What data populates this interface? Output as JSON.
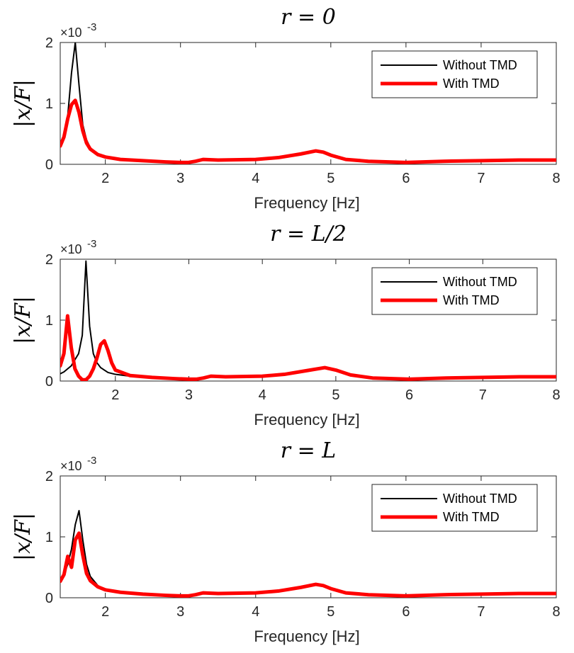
{
  "chart_data": [
    {
      "type": "line",
      "title": "r = 0",
      "xlabel": "Frequency [Hz]",
      "ylabel": "|x/F|",
      "y_exponent_label": "×10",
      "y_exponent_power": "-3",
      "xlim": [
        1.4,
        8
      ],
      "ylim": [
        0,
        2
      ],
      "xticks": [
        2,
        3,
        4,
        5,
        6,
        7,
        8
      ],
      "yticks": [
        0,
        1,
        2
      ],
      "legend_position": "top-right",
      "series": [
        {
          "name": "Without TMD",
          "color": "#000000",
          "x": [
            1.4,
            1.45,
            1.5,
            1.55,
            1.6,
            1.65,
            1.7,
            1.75,
            1.8,
            1.9,
            2.0,
            2.2,
            2.5,
            2.8,
            3.0,
            3.1,
            3.2,
            3.3,
            3.5,
            4.0,
            4.3,
            4.6,
            4.8,
            4.9,
            5.0,
            5.2,
            5.5,
            6.0,
            6.5,
            7.0,
            7.5,
            8.0
          ],
          "values": [
            0.3,
            0.45,
            0.8,
            1.5,
            2.0,
            1.3,
            0.65,
            0.4,
            0.27,
            0.17,
            0.12,
            0.08,
            0.06,
            0.04,
            0.03,
            0.03,
            0.05,
            0.08,
            0.07,
            0.08,
            0.11,
            0.17,
            0.22,
            0.2,
            0.15,
            0.08,
            0.05,
            0.03,
            0.05,
            0.06,
            0.07,
            0.07
          ]
        },
        {
          "name": "With TMD",
          "color": "#ff0000",
          "x": [
            1.4,
            1.45,
            1.5,
            1.55,
            1.6,
            1.65,
            1.7,
            1.75,
            1.8,
            1.9,
            2.0,
            2.2,
            2.5,
            2.8,
            3.0,
            3.1,
            3.2,
            3.3,
            3.5,
            4.0,
            4.3,
            4.6,
            4.8,
            4.9,
            5.0,
            5.2,
            5.5,
            6.0,
            6.5,
            7.0,
            7.5,
            8.0
          ],
          "values": [
            0.3,
            0.45,
            0.75,
            0.98,
            1.05,
            0.85,
            0.55,
            0.35,
            0.25,
            0.16,
            0.12,
            0.08,
            0.06,
            0.04,
            0.03,
            0.03,
            0.05,
            0.08,
            0.07,
            0.08,
            0.11,
            0.17,
            0.22,
            0.2,
            0.15,
            0.08,
            0.05,
            0.03,
            0.05,
            0.06,
            0.07,
            0.07
          ]
        }
      ]
    },
    {
      "type": "line",
      "title": "r = L/2",
      "xlabel": "Frequency [Hz]",
      "ylabel": "|x/F|",
      "y_exponent_label": "×10",
      "y_exponent_power": "-3",
      "xlim": [
        1.25,
        8
      ],
      "ylim": [
        0,
        2
      ],
      "xticks": [
        2,
        3,
        4,
        5,
        6,
        7,
        8
      ],
      "yticks": [
        0,
        1,
        2
      ],
      "legend_position": "top-right",
      "series": [
        {
          "name": "Without TMD",
          "color": "#000000",
          "x": [
            1.25,
            1.3,
            1.4,
            1.45,
            1.5,
            1.55,
            1.6,
            1.65,
            1.7,
            1.75,
            1.8,
            1.9,
            2.0,
            2.2,
            2.5,
            2.8,
            3.0,
            3.1,
            3.2,
            3.3,
            3.5,
            4.0,
            4.3,
            4.6,
            4.85,
            5.0,
            5.2,
            5.5,
            6.0,
            6.5,
            7.0,
            7.5,
            8.0
          ],
          "values": [
            0.12,
            0.15,
            0.25,
            0.35,
            0.45,
            0.75,
            1.97,
            0.9,
            0.45,
            0.3,
            0.22,
            0.14,
            0.11,
            0.08,
            0.06,
            0.04,
            0.03,
            0.03,
            0.05,
            0.08,
            0.07,
            0.08,
            0.11,
            0.17,
            0.22,
            0.18,
            0.1,
            0.05,
            0.03,
            0.05,
            0.06,
            0.07,
            0.07
          ]
        },
        {
          "name": "With TMD",
          "color": "#ff0000",
          "x": [
            1.25,
            1.3,
            1.35,
            1.4,
            1.45,
            1.5,
            1.55,
            1.6,
            1.65,
            1.7,
            1.75,
            1.8,
            1.85,
            1.9,
            1.95,
            2.0,
            2.2,
            2.5,
            2.8,
            3.0,
            3.1,
            3.2,
            3.3,
            3.5,
            4.0,
            4.3,
            4.6,
            4.85,
            5.0,
            5.2,
            5.5,
            6.0,
            6.5,
            7.0,
            7.5,
            8.0
          ],
          "values": [
            0.25,
            0.45,
            1.07,
            0.55,
            0.2,
            0.08,
            0.02,
            0.02,
            0.08,
            0.2,
            0.38,
            0.6,
            0.66,
            0.5,
            0.3,
            0.18,
            0.09,
            0.06,
            0.04,
            0.03,
            0.03,
            0.05,
            0.08,
            0.07,
            0.08,
            0.11,
            0.17,
            0.22,
            0.18,
            0.1,
            0.05,
            0.03,
            0.05,
            0.06,
            0.07,
            0.07
          ]
        }
      ]
    },
    {
      "type": "line",
      "title": "r = L",
      "xlabel": "Frequency [Hz]",
      "ylabel": "|x/F|",
      "y_exponent_label": "×10",
      "y_exponent_power": "-3",
      "xlim": [
        1.4,
        8
      ],
      "ylim": [
        0,
        2
      ],
      "xticks": [
        2,
        3,
        4,
        5,
        6,
        7,
        8
      ],
      "yticks": [
        0,
        1,
        2
      ],
      "legend_position": "top-right",
      "series": [
        {
          "name": "Without TMD",
          "color": "#000000",
          "x": [
            1.4,
            1.45,
            1.5,
            1.55,
            1.6,
            1.65,
            1.7,
            1.75,
            1.8,
            1.9,
            2.0,
            2.2,
            2.5,
            2.8,
            3.0,
            3.1,
            3.2,
            3.3,
            3.5,
            4.0,
            4.3,
            4.6,
            4.8,
            4.9,
            5.0,
            5.2,
            5.5,
            6.0,
            6.5,
            7.0,
            7.5,
            8.0
          ],
          "values": [
            0.27,
            0.38,
            0.55,
            0.8,
            1.2,
            1.43,
            0.95,
            0.55,
            0.35,
            0.2,
            0.13,
            0.09,
            0.06,
            0.04,
            0.03,
            0.03,
            0.05,
            0.08,
            0.07,
            0.08,
            0.11,
            0.17,
            0.22,
            0.2,
            0.15,
            0.08,
            0.05,
            0.03,
            0.05,
            0.06,
            0.07,
            0.07
          ]
        },
        {
          "name": "With TMD",
          "color": "#ff0000",
          "x": [
            1.4,
            1.45,
            1.5,
            1.55,
            1.6,
            1.65,
            1.7,
            1.75,
            1.8,
            1.9,
            2.0,
            2.2,
            2.5,
            2.8,
            3.0,
            3.1,
            3.2,
            3.3,
            3.5,
            4.0,
            4.3,
            4.6,
            4.8,
            4.9,
            5.0,
            5.2,
            5.5,
            6.0,
            6.5,
            7.0,
            7.5,
            8.0
          ],
          "values": [
            0.27,
            0.38,
            0.68,
            0.5,
            0.95,
            1.06,
            0.7,
            0.4,
            0.28,
            0.18,
            0.13,
            0.09,
            0.06,
            0.04,
            0.03,
            0.03,
            0.05,
            0.08,
            0.07,
            0.08,
            0.11,
            0.17,
            0.22,
            0.2,
            0.15,
            0.08,
            0.05,
            0.03,
            0.05,
            0.06,
            0.07,
            0.07
          ]
        }
      ]
    }
  ]
}
